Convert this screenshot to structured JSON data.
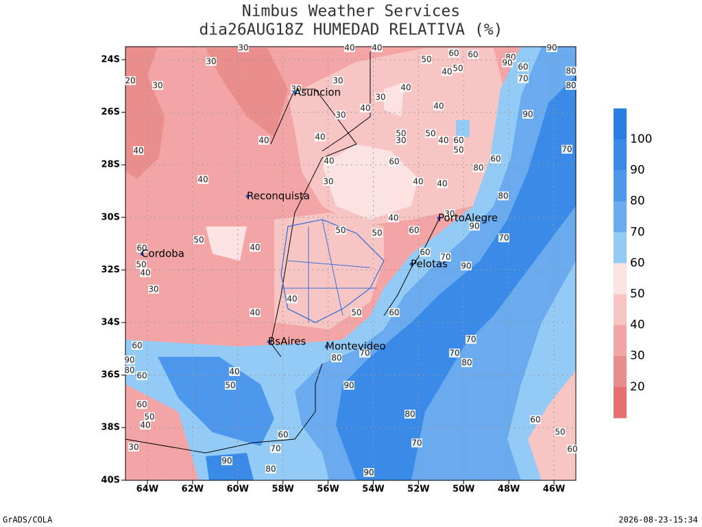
{
  "header": {
    "title": "Nimbus Weather Services",
    "subtitle": "dia26AUG18Z HUMEDAD RELATIVA (%)"
  },
  "map": {
    "lat_labels": [
      "24S",
      "26S",
      "28S",
      "30S",
      "32S",
      "34S",
      "36S",
      "38S",
      "40S"
    ],
    "lon_labels": [
      "64W",
      "62W",
      "60W",
      "58W",
      "56W",
      "54W",
      "52W",
      "50W",
      "48W",
      "46W"
    ]
  },
  "colorbar": {
    "labels": [
      100,
      90,
      80,
      70,
      60,
      50,
      40,
      30,
      20
    ]
  },
  "cities": [
    "Asuncion",
    "Reconquista",
    "Cordoba",
    "PortoAlegre",
    "Pelotas",
    "BsAires",
    "Montevideo"
  ],
  "contour_labels": [
    30,
    30,
    20,
    30,
    40,
    40,
    50,
    40,
    50,
    60,
    60,
    80,
    90,
    60,
    70,
    90,
    80,
    80,
    30,
    30,
    30,
    40,
    40,
    30,
    90,
    40,
    40,
    40,
    50,
    30,
    50,
    40,
    60,
    50,
    70,
    40,
    60,
    40,
    60,
    80,
    40,
    30,
    40,
    40,
    80,
    40,
    30,
    50,
    50,
    60,
    90,
    50,
    70,
    60,
    40,
    50,
    60,
    70,
    40,
    90,
    30,
    40,
    40,
    50,
    60,
    60,
    70,
    90,
    80,
    60,
    80,
    70,
    70,
    80,
    40,
    50,
    90,
    60,
    50,
    40,
    80,
    60,
    50,
    60,
    70,
    70,
    60,
    30,
    90,
    80,
    90
  ],
  "footer": {
    "left": "GrADS/COLA",
    "right": "2026-08-23-15:34"
  }
}
